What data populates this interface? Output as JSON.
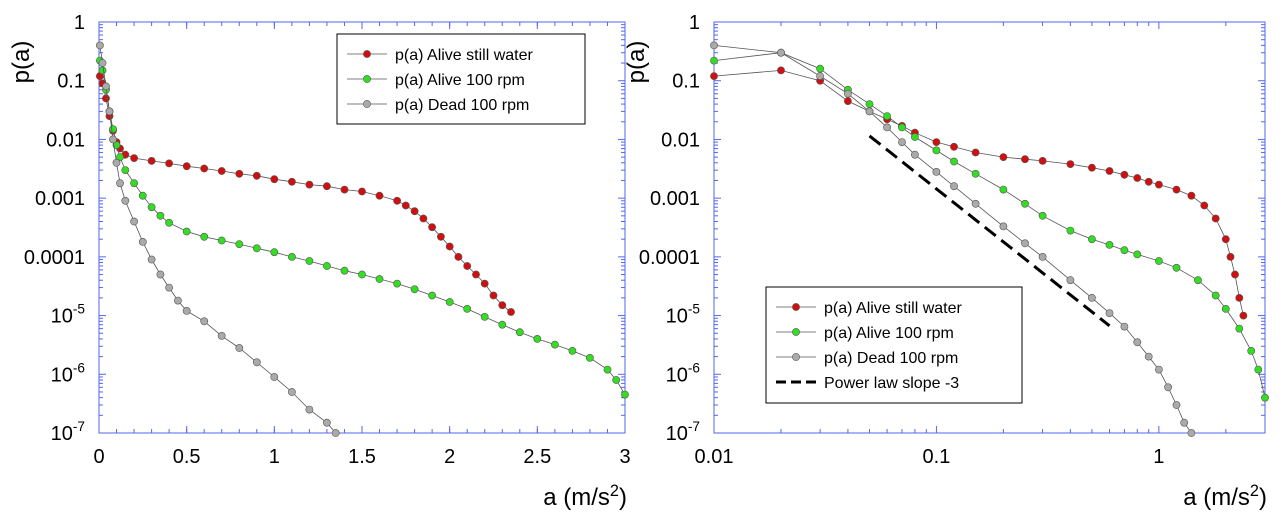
{
  "chart_data": [
    {
      "type": "scatter",
      "panel": "left",
      "xscale": "linear",
      "yscale": "log",
      "xlim": [
        0,
        3
      ],
      "ylim": [
        1e-07,
        1
      ],
      "xticks": [
        0,
        0.5,
        1,
        1.5,
        2,
        2.5,
        3
      ],
      "xtick_labels": [
        "0",
        "0.5",
        "1",
        "1.5",
        "2",
        "2.5",
        "3"
      ],
      "yticks": [
        1e-07,
        1e-06,
        1e-05,
        0.0001,
        0.001,
        0.01,
        0.1,
        1
      ],
      "ytick_labels": [
        {
          "text": "10",
          "sup": "-7"
        },
        {
          "text": "10",
          "sup": "-6"
        },
        {
          "text": "10",
          "sup": "-5"
        },
        {
          "text": "0.0001",
          "sup": ""
        },
        {
          "text": "0.001",
          "sup": ""
        },
        {
          "text": "0.01",
          "sup": ""
        },
        {
          "text": "0.1",
          "sup": ""
        },
        {
          "text": "1",
          "sup": ""
        }
      ],
      "xlabel": {
        "text": "a (m/s",
        "sup": "2",
        "suffix": ")"
      },
      "ylabel": "p(a)",
      "legend_position": "top-right",
      "grid": false,
      "series": [
        {
          "name": "p(a) Alive still water",
          "color": "#d01010",
          "points": [
            [
              0.005,
              0.12
            ],
            [
              0.02,
              0.09
            ],
            [
              0.04,
              0.05
            ],
            [
              0.06,
              0.025
            ],
            [
              0.08,
              0.014
            ],
            [
              0.1,
              0.009
            ],
            [
              0.12,
              0.007
            ],
            [
              0.15,
              0.0055
            ],
            [
              0.2,
              0.0048
            ],
            [
              0.3,
              0.0043
            ],
            [
              0.4,
              0.0039
            ],
            [
              0.5,
              0.0035
            ],
            [
              0.6,
              0.0032
            ],
            [
              0.7,
              0.0029
            ],
            [
              0.8,
              0.0026
            ],
            [
              0.9,
              0.0024
            ],
            [
              1.0,
              0.0021
            ],
            [
              1.1,
              0.0019
            ],
            [
              1.2,
              0.0017
            ],
            [
              1.3,
              0.0016
            ],
            [
              1.4,
              0.0014
            ],
            [
              1.5,
              0.0013
            ],
            [
              1.6,
              0.0011
            ],
            [
              1.7,
              0.0009
            ],
            [
              1.75,
              0.00075
            ],
            [
              1.8,
              0.0006
            ],
            [
              1.85,
              0.00045
            ],
            [
              1.9,
              0.00032
            ],
            [
              1.95,
              0.00022
            ],
            [
              2.0,
              0.00015
            ],
            [
              2.05,
              0.0001
            ],
            [
              2.1,
              7e-05
            ],
            [
              2.15,
              5e-05
            ],
            [
              2.2,
              3.5e-05
            ],
            [
              2.25,
              2.2e-05
            ],
            [
              2.3,
              1.5e-05
            ],
            [
              2.35,
              1.15e-05
            ]
          ]
        },
        {
          "name": "p(a) Alive 100 rpm",
          "color": "#33dd22",
          "points": [
            [
              0.005,
              0.22
            ],
            [
              0.02,
              0.15
            ],
            [
              0.04,
              0.07
            ],
            [
              0.06,
              0.03
            ],
            [
              0.08,
              0.015
            ],
            [
              0.1,
              0.008
            ],
            [
              0.12,
              0.005
            ],
            [
              0.15,
              0.003
            ],
            [
              0.2,
              0.0018
            ],
            [
              0.25,
              0.0011
            ],
            [
              0.3,
              0.0007
            ],
            [
              0.35,
              0.0005
            ],
            [
              0.4,
              0.00038
            ],
            [
              0.5,
              0.00027
            ],
            [
              0.6,
              0.00022
            ],
            [
              0.7,
              0.00019
            ],
            [
              0.8,
              0.000165
            ],
            [
              0.9,
              0.00014
            ],
            [
              1.0,
              0.00012
            ],
            [
              1.1,
              0.0001
            ],
            [
              1.2,
              8.5e-05
            ],
            [
              1.3,
              7e-05
            ],
            [
              1.4,
              5.8e-05
            ],
            [
              1.5,
              5e-05
            ],
            [
              1.6,
              4.2e-05
            ],
            [
              1.7,
              3.5e-05
            ],
            [
              1.8,
              2.8e-05
            ],
            [
              1.9,
              2.2e-05
            ],
            [
              2.0,
              1.7e-05
            ],
            [
              2.1,
              1.3e-05
            ],
            [
              2.2,
              9.5e-06
            ],
            [
              2.3,
              7e-06
            ],
            [
              2.4,
              5.2e-06
            ],
            [
              2.5,
              4e-06
            ],
            [
              2.6,
              3.2e-06
            ],
            [
              2.7,
              2.5e-06
            ],
            [
              2.8,
              1.9e-06
            ],
            [
              2.9,
              1.2e-06
            ],
            [
              2.95,
              8e-07
            ],
            [
              3.0,
              4.5e-07
            ]
          ]
        },
        {
          "name": "p(a) Dead 100 rpm",
          "color": "#aaaaaa",
          "points": [
            [
              0.005,
              0.4
            ],
            [
              0.02,
              0.2
            ],
            [
              0.04,
              0.08
            ],
            [
              0.06,
              0.03
            ],
            [
              0.08,
              0.01
            ],
            [
              0.1,
              0.004
            ],
            [
              0.12,
              0.0018
            ],
            [
              0.15,
              0.0009
            ],
            [
              0.2,
              0.0004
            ],
            [
              0.25,
              0.00018
            ],
            [
              0.3,
              9e-05
            ],
            [
              0.35,
              5e-05
            ],
            [
              0.4,
              3e-05
            ],
            [
              0.45,
              1.8e-05
            ],
            [
              0.5,
              1.2e-05
            ],
            [
              0.6,
              8e-06
            ],
            [
              0.7,
              4.5e-06
            ],
            [
              0.8,
              2.8e-06
            ],
            [
              0.9,
              1.6e-06
            ],
            [
              1.0,
              9e-07
            ],
            [
              1.1,
              5e-07
            ],
            [
              1.2,
              2.5e-07
            ],
            [
              1.3,
              1.5e-07
            ],
            [
              1.35,
              1e-07
            ]
          ]
        }
      ]
    },
    {
      "type": "scatter",
      "panel": "right",
      "xscale": "log",
      "yscale": "log",
      "xlim": [
        0.01,
        3
      ],
      "ylim": [
        1e-07,
        1
      ],
      "xticks": [
        0.01,
        0.1,
        1
      ],
      "xtick_labels": [
        "0.01",
        "0.1",
        "1"
      ],
      "yticks": [
        1e-07,
        1e-06,
        1e-05,
        0.0001,
        0.001,
        0.01,
        0.1,
        1
      ],
      "ytick_labels": [
        {
          "text": "10",
          "sup": "-7"
        },
        {
          "text": "10",
          "sup": "-6"
        },
        {
          "text": "10",
          "sup": "-5"
        },
        {
          "text": "0.0001",
          "sup": ""
        },
        {
          "text": "0.001",
          "sup": ""
        },
        {
          "text": "0.01",
          "sup": ""
        },
        {
          "text": "0.1",
          "sup": ""
        },
        {
          "text": "1",
          "sup": ""
        }
      ],
      "xlabel": {
        "text": "a (m/s",
        "sup": "2",
        "suffix": ")"
      },
      "ylabel": "p(a)",
      "legend_position": "bottom-left",
      "grid": false,
      "series": [
        {
          "name": "p(a) Alive still water",
          "color": "#d01010",
          "points": [
            [
              0.01,
              0.12
            ],
            [
              0.02,
              0.15
            ],
            [
              0.03,
              0.1
            ],
            [
              0.04,
              0.045
            ],
            [
              0.05,
              0.03
            ],
            [
              0.06,
              0.022
            ],
            [
              0.07,
              0.017
            ],
            [
              0.08,
              0.013
            ],
            [
              0.1,
              0.009
            ],
            [
              0.12,
              0.0075
            ],
            [
              0.15,
              0.006
            ],
            [
              0.2,
              0.005
            ],
            [
              0.25,
              0.0046
            ],
            [
              0.3,
              0.0043
            ],
            [
              0.4,
              0.0038
            ],
            [
              0.5,
              0.0033
            ],
            [
              0.6,
              0.0029
            ],
            [
              0.7,
              0.0025
            ],
            [
              0.8,
              0.0022
            ],
            [
              0.9,
              0.0019
            ],
            [
              1.0,
              0.0017
            ],
            [
              1.2,
              0.0014
            ],
            [
              1.4,
              0.0011
            ],
            [
              1.6,
              0.00075
            ],
            [
              1.8,
              0.00045
            ],
            [
              2.0,
              0.0002
            ],
            [
              2.1,
              0.0001
            ],
            [
              2.2,
              5e-05
            ],
            [
              2.3,
              2e-05
            ],
            [
              2.4,
              1e-05
            ]
          ]
        },
        {
          "name": "p(a) Alive 100 rpm",
          "color": "#33dd22",
          "points": [
            [
              0.01,
              0.22
            ],
            [
              0.02,
              0.3
            ],
            [
              0.03,
              0.16
            ],
            [
              0.04,
              0.07
            ],
            [
              0.05,
              0.04
            ],
            [
              0.06,
              0.025
            ],
            [
              0.07,
              0.016
            ],
            [
              0.08,
              0.011
            ],
            [
              0.1,
              0.0065
            ],
            [
              0.12,
              0.0042
            ],
            [
              0.15,
              0.0026
            ],
            [
              0.2,
              0.0014
            ],
            [
              0.25,
              0.0008
            ],
            [
              0.3,
              0.0005
            ],
            [
              0.4,
              0.00028
            ],
            [
              0.5,
              0.0002
            ],
            [
              0.6,
              0.00016
            ],
            [
              0.7,
              0.00013
            ],
            [
              0.8,
              0.00011
            ],
            [
              1.0,
              8.5e-05
            ],
            [
              1.2,
              6.5e-05
            ],
            [
              1.5,
              4e-05
            ],
            [
              1.8,
              2.2e-05
            ],
            [
              2.0,
              1.3e-05
            ],
            [
              2.3,
              6e-06
            ],
            [
              2.6,
              2.5e-06
            ],
            [
              2.8,
              1.2e-06
            ],
            [
              3.0,
              4e-07
            ]
          ]
        },
        {
          "name": "p(a) Dead 100 rpm",
          "color": "#aaaaaa",
          "points": [
            [
              0.01,
              0.4
            ],
            [
              0.02,
              0.3
            ],
            [
              0.03,
              0.12
            ],
            [
              0.04,
              0.06
            ],
            [
              0.05,
              0.03
            ],
            [
              0.06,
              0.016
            ],
            [
              0.07,
              0.009
            ],
            [
              0.08,
              0.0055
            ],
            [
              0.1,
              0.0028
            ],
            [
              0.12,
              0.0016
            ],
            [
              0.15,
              0.0008
            ],
            [
              0.2,
              0.00033
            ],
            [
              0.25,
              0.00017
            ],
            [
              0.3,
              0.0001
            ],
            [
              0.4,
              4e-05
            ],
            [
              0.5,
              2e-05
            ],
            [
              0.6,
              1.1e-05
            ],
            [
              0.7,
              6.5e-06
            ],
            [
              0.8,
              3.5e-06
            ],
            [
              0.9,
              2e-06
            ],
            [
              1.0,
              1.2e-06
            ],
            [
              1.1,
              6e-07
            ],
            [
              1.2,
              3e-07
            ],
            [
              1.3,
              1.5e-07
            ],
            [
              1.4,
              1e-07
            ]
          ]
        },
        {
          "name": "Power law slope -3",
          "style": "dashed",
          "color": "#000000",
          "points": [
            [
              0.05,
              0.0115
            ],
            [
              0.6,
              6.7e-06
            ]
          ]
        }
      ]
    }
  ]
}
